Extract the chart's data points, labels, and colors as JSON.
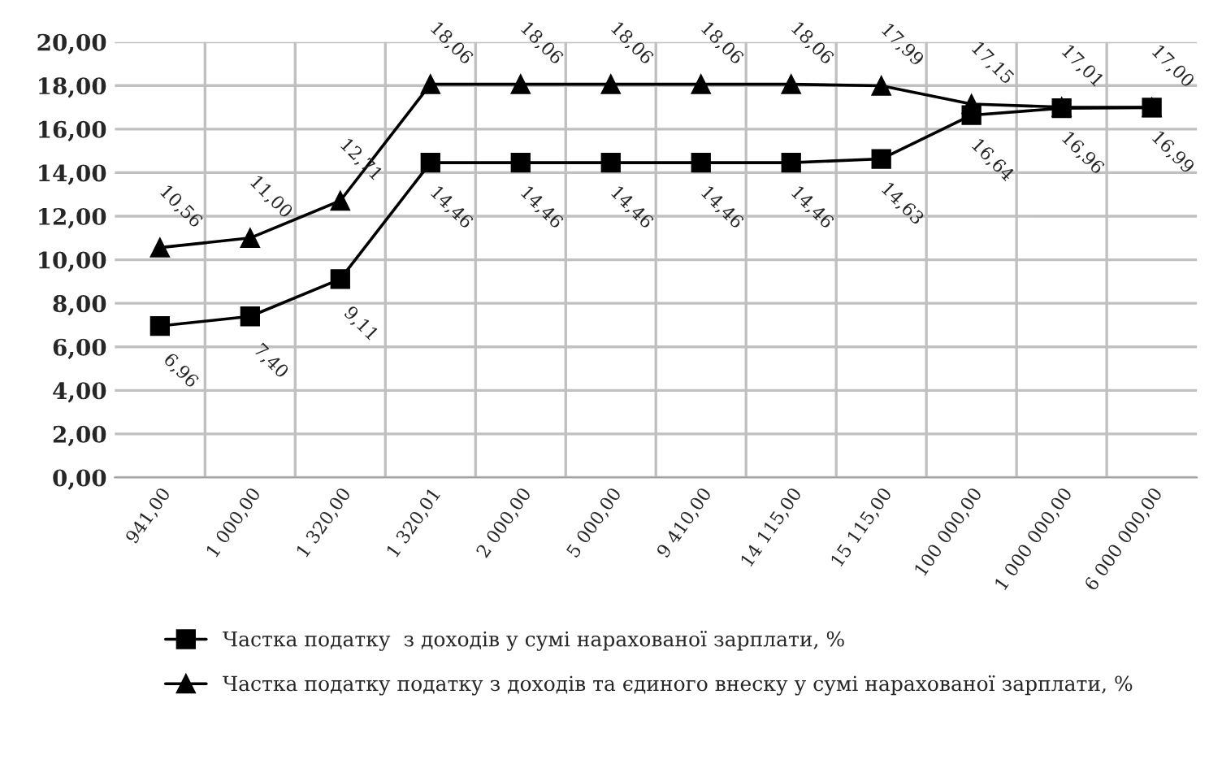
{
  "chart_data": {
    "type": "line",
    "categories": [
      "941,00",
      "1 000,00",
      "1 320,00",
      "1 320,01",
      "2 000,00",
      "5 000,00",
      "9 410,00",
      "14 115,00",
      "15 115,00",
      "100 000,00",
      "1 000 000,00",
      "6 000 000,00"
    ],
    "series": [
      {
        "name": "Частка податку  з доходів у сумі нарахованої зарплати, %",
        "color": "#000000",
        "marker": "square",
        "values": [
          6.96,
          7.4,
          9.11,
          14.46,
          14.46,
          14.46,
          14.46,
          14.46,
          14.63,
          16.64,
          16.96,
          16.99
        ],
        "value_labels": [
          "6,96",
          "7,40",
          "9,11",
          "14,46",
          "14,46",
          "14,46",
          "14,46",
          "14,46",
          "14,63",
          "16,64",
          "16,96",
          "16,99"
        ]
      },
      {
        "name": "Частка податку податку з доходів та єдиного внеску у сумі нарахованої зарплати, %",
        "color": "#000000",
        "marker": "triangle",
        "values": [
          10.56,
          11.0,
          12.71,
          18.06,
          18.06,
          18.06,
          18.06,
          18.06,
          17.99,
          17.15,
          17.01,
          17.0
        ],
        "value_labels": [
          "10,56",
          "11,00",
          "12,71",
          "18,06",
          "18,06",
          "18,06",
          "18,06",
          "18,06",
          "17,99",
          "17,15",
          "17,01",
          "17,00"
        ]
      }
    ],
    "ylim": [
      0,
      20
    ],
    "yticks": [
      {
        "value": 0,
        "label": "0,00"
      },
      {
        "value": 2,
        "label": "2,00"
      },
      {
        "value": 4,
        "label": "4,00"
      },
      {
        "value": 6,
        "label": "6,00"
      },
      {
        "value": 8,
        "label": "8,00"
      },
      {
        "value": 10,
        "label": "10,00"
      },
      {
        "value": 12,
        "label": "12,00"
      },
      {
        "value": 14,
        "label": "14,00"
      },
      {
        "value": 16,
        "label": "16,00"
      },
      {
        "value": 18,
        "label": "18,00"
      },
      {
        "value": 20,
        "label": "20,00"
      }
    ],
    "grid": true,
    "legend": "bottom",
    "line_style": "solid"
  }
}
